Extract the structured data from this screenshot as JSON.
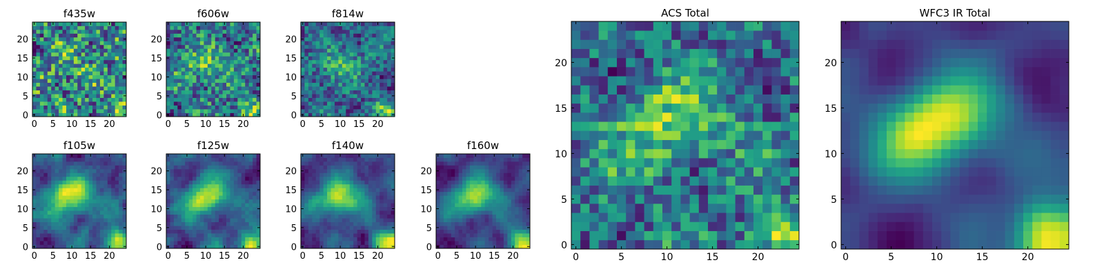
{
  "figure": {
    "title": ""
  },
  "chart_data": [
    {
      "type": "heatmap",
      "title": "f435w",
      "xticks": [
        "0",
        "5",
        "10",
        "15",
        "20"
      ],
      "yticks": [
        "0",
        "5",
        "10",
        "15",
        "20"
      ],
      "xlim": [
        0,
        25
      ],
      "ylim": [
        0,
        25
      ],
      "grid_size": 25,
      "colormap": "viridis",
      "seed": 11,
      "blob_weight": 0.18,
      "noise": 0.85,
      "smooth": 0
    },
    {
      "type": "heatmap",
      "title": "f606w",
      "xticks": [
        "0",
        "5",
        "10",
        "15",
        "20"
      ],
      "yticks": [
        "0",
        "5",
        "10",
        "15",
        "20"
      ],
      "xlim": [
        0,
        25
      ],
      "ylim": [
        0,
        25
      ],
      "grid_size": 25,
      "colormap": "viridis",
      "seed": 23,
      "blob_weight": 0.35,
      "noise": 0.65,
      "smooth": 0
    },
    {
      "type": "heatmap",
      "title": "f814w",
      "xticks": [
        "0",
        "5",
        "10",
        "15",
        "20"
      ],
      "yticks": [
        "0",
        "5",
        "10",
        "15",
        "20"
      ],
      "xlim": [
        0,
        25
      ],
      "ylim": [
        0,
        25
      ],
      "grid_size": 25,
      "colormap": "viridis",
      "seed": 37,
      "blob_weight": 0.45,
      "noise": 0.6,
      "smooth": 0
    },
    {
      "type": "heatmap",
      "title": "f105w",
      "xticks": [
        "0",
        "5",
        "10",
        "15",
        "20"
      ],
      "yticks": [
        "0",
        "5",
        "10",
        "15",
        "20"
      ],
      "xlim": [
        0,
        25
      ],
      "ylim": [
        0,
        25
      ],
      "grid_size": 25,
      "colormap": "viridis",
      "seed": 41,
      "blob_weight": 0.6,
      "noise": 0.4,
      "smooth": 1
    },
    {
      "type": "heatmap",
      "title": "f125w",
      "xticks": [
        "0",
        "5",
        "10",
        "15",
        "20"
      ],
      "yticks": [
        "0",
        "5",
        "10",
        "15",
        "20"
      ],
      "xlim": [
        0,
        25
      ],
      "ylim": [
        0,
        25
      ],
      "grid_size": 25,
      "colormap": "viridis",
      "seed": 53,
      "blob_weight": 0.6,
      "noise": 0.4,
      "smooth": 1
    },
    {
      "type": "heatmap",
      "title": "f140w",
      "xticks": [
        "0",
        "5",
        "10",
        "15",
        "20"
      ],
      "yticks": [
        "0",
        "5",
        "10",
        "15",
        "20"
      ],
      "xlim": [
        0,
        25
      ],
      "ylim": [
        0,
        25
      ],
      "grid_size": 25,
      "colormap": "viridis",
      "seed": 67,
      "blob_weight": 0.65,
      "noise": 0.35,
      "smooth": 1
    },
    {
      "type": "heatmap",
      "title": "f160w",
      "xticks": [
        "0",
        "5",
        "10",
        "15",
        "20"
      ],
      "yticks": [
        "0",
        "5",
        "10",
        "15",
        "20"
      ],
      "xlim": [
        0,
        25
      ],
      "ylim": [
        0,
        25
      ],
      "grid_size": 25,
      "colormap": "viridis",
      "seed": 79,
      "blob_weight": 0.7,
      "noise": 0.3,
      "smooth": 1
    },
    {
      "type": "heatmap",
      "title": "ACS Total",
      "xticks": [
        "0",
        "5",
        "10",
        "15",
        "20"
      ],
      "yticks": [
        "0",
        "5",
        "10",
        "15",
        "20"
      ],
      "xlim": [
        0,
        25
      ],
      "ylim": [
        0,
        25
      ],
      "grid_size": 25,
      "colormap": "viridis",
      "seed": 91,
      "blob_weight": 0.45,
      "noise": 0.55,
      "smooth": 0
    },
    {
      "type": "heatmap",
      "title": "WFC3 IR Total",
      "xticks": [
        "0",
        "5",
        "10",
        "15",
        "20"
      ],
      "yticks": [
        "0",
        "5",
        "10",
        "15",
        "20"
      ],
      "xlim": [
        0,
        25
      ],
      "ylim": [
        0,
        25
      ],
      "grid_size": 25,
      "colormap": "viridis",
      "seed": 103,
      "blob_weight": 0.8,
      "noise": 0.15,
      "smooth": 2
    }
  ]
}
